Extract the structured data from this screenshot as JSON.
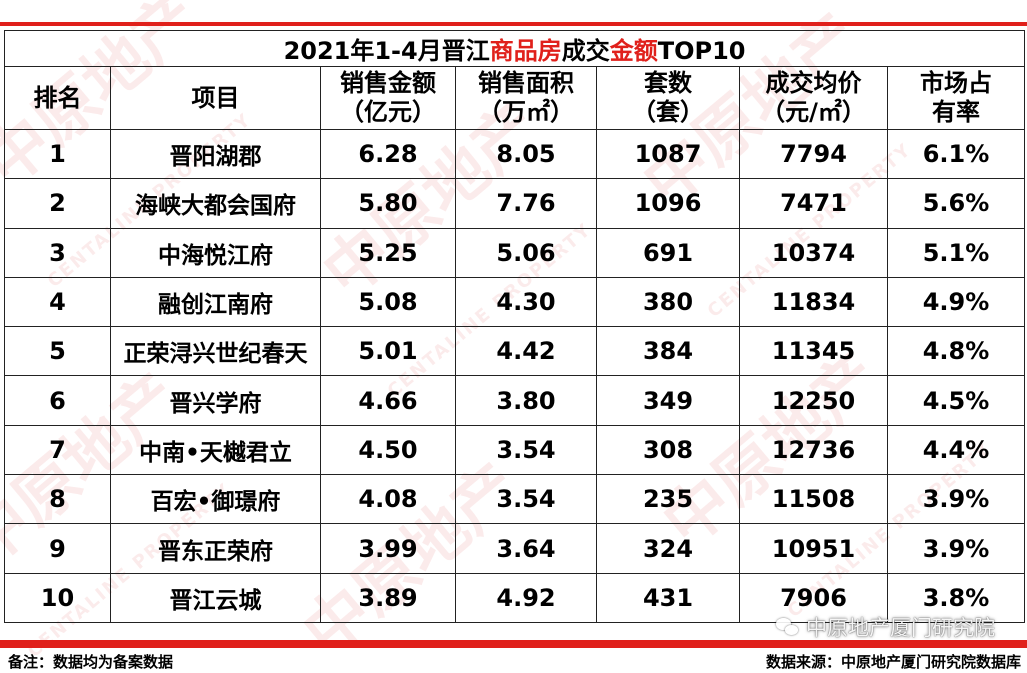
{
  "title": {
    "part1": "2021年1-4月晋江",
    "part2": "商品房",
    "part3": "成交",
    "part4": "金额",
    "part5": "TOP10"
  },
  "headers": {
    "rank": "排名",
    "project": "项目",
    "sales_amount_1": "销售金额",
    "sales_amount_2": "（亿元）",
    "sales_area_1": "销售面积",
    "sales_area_2": "（万㎡）",
    "units_1": "套数",
    "units_2": "（套）",
    "avg_price_1": "成交均价",
    "avg_price_2": "（元/㎡）",
    "share_1": "市场占",
    "share_2": "有率"
  },
  "rows": [
    {
      "rank": "1",
      "project": "晋阳湖郡",
      "amount": "6.28",
      "area": "8.05",
      "units": "1087",
      "price": "7794",
      "share": "6.1%"
    },
    {
      "rank": "2",
      "project": "海峡大都会国府",
      "amount": "5.80",
      "area": "7.76",
      "units": "1096",
      "price": "7471",
      "share": "5.6%"
    },
    {
      "rank": "3",
      "project": "中海悦江府",
      "amount": "5.25",
      "area": "5.06",
      "units": "691",
      "price": "10374",
      "share": "5.1%"
    },
    {
      "rank": "4",
      "project": "融创江南府",
      "amount": "5.08",
      "area": "4.30",
      "units": "380",
      "price": "11834",
      "share": "4.9%"
    },
    {
      "rank": "5",
      "project": "正荣浔兴世纪春天",
      "amount": "5.01",
      "area": "4.42",
      "units": "384",
      "price": "11345",
      "share": "4.8%"
    },
    {
      "rank": "6",
      "project": "晋兴学府",
      "amount": "4.66",
      "area": "3.80",
      "units": "349",
      "price": "12250",
      "share": "4.5%"
    },
    {
      "rank": "7",
      "project": "中南•天樾君立",
      "amount": "4.50",
      "area": "3.54",
      "units": "308",
      "price": "12736",
      "share": "4.4%"
    },
    {
      "rank": "8",
      "project": "百宏•御璟府",
      "amount": "4.08",
      "area": "3.54",
      "units": "235",
      "price": "11508",
      "share": "3.9%"
    },
    {
      "rank": "9",
      "project": "晋东正荣府",
      "amount": "3.99",
      "area": "3.64",
      "units": "324",
      "price": "10951",
      "share": "3.9%"
    },
    {
      "rank": "10",
      "project": "晋江云城",
      "amount": "3.89",
      "area": "4.92",
      "units": "431",
      "price": "7906",
      "share": "3.8%"
    }
  ],
  "footer": {
    "note": "备注：数据均为备案数据",
    "source": "数据来源：中原地产厦门研究院数据库",
    "wechat": "中原地产厦门研究院"
  },
  "watermark": {
    "brand_cn": "中原地产",
    "brand_en": "CENTALINE PROPERTY"
  },
  "colors": {
    "accent": "#e0201b"
  }
}
